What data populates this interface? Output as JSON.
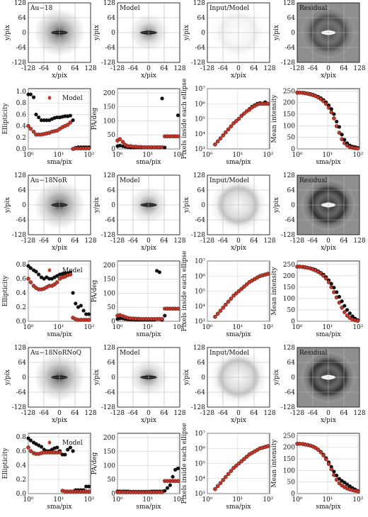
{
  "labels": {
    "y_pix": "y/pix",
    "x_pix": "x/pix",
    "sma": "sma/pix",
    "ellipticity": "Ellipticity",
    "pa": "PA/deg",
    "pixels": "Pixels inside each ellipse",
    "mean": "Mean intensity",
    "model_legend": "Model",
    "panel_model": "Model",
    "panel_ratio": "Input/Model",
    "panel_residual": "Residual"
  },
  "image_ticks": [
    "128",
    "64",
    "0",
    "-64",
    "-128"
  ],
  "image_xticks": [
    "-128",
    "-64",
    "0",
    "64",
    "128"
  ],
  "colors": {
    "data": "#111111",
    "model": "#c0392b",
    "grid": "#cccccc"
  },
  "chart_data": [
    {
      "type": "scatter",
      "galaxy": "Au−18",
      "ellipticity": {
        "x": [
          1.0,
          1.2,
          1.5,
          1.8,
          2.2,
          2.7,
          3.3,
          4.0,
          4.9,
          6.0,
          7.3,
          8.9,
          10.9,
          13.3,
          16.2,
          19.8,
          24.2,
          29.5,
          36,
          44,
          54,
          66,
          80,
          98
        ],
        "data": [
          0.95,
          0.95,
          0.9,
          0.6,
          0.55,
          0.5,
          0.5,
          0.5,
          0.5,
          0.52,
          0.54,
          0.55,
          0.55,
          0.56,
          0.57,
          0.57,
          0.58,
          0.5,
          0.02,
          0.03,
          0.03,
          0.03,
          0.03,
          0.03
        ],
        "model": [
          0.4,
          0.35,
          0.3,
          0.25,
          0.25,
          0.25,
          0.26,
          0.27,
          0.28,
          0.3,
          0.31,
          0.32,
          0.35,
          0.38,
          0.4,
          0.42,
          0.46,
          0.0,
          0.01,
          0.01,
          0.01,
          0.01,
          0.01,
          0.01
        ],
        "xticks": [
          "10⁰",
          "10¹",
          "10²"
        ],
        "yticks": [
          "0.0",
          "0.2",
          "0.4",
          "0.6",
          "0.8",
          "1.0"
        ],
        "ylim": [
          0,
          1.05
        ]
      },
      "pa": {
        "x": [
          1.0,
          1.2,
          1.5,
          1.8,
          2.2,
          2.7,
          3.3,
          4.0,
          4.9,
          6.0,
          7.3,
          8.9,
          10.9,
          13.3,
          16.2,
          19.8,
          24.2,
          29.5,
          36,
          44,
          54,
          66,
          80,
          98
        ],
        "data": [
          10,
          12,
          10,
          8,
          6,
          5,
          5,
          5,
          5,
          5,
          5,
          5,
          5,
          5,
          5,
          5,
          5,
          180,
          5,
          45,
          45,
          45,
          45,
          120
        ],
        "model": [
          30,
          35,
          25,
          15,
          10,
          10,
          8,
          8,
          7,
          7,
          6,
          6,
          6,
          6,
          6,
          6,
          6,
          6,
          45,
          45,
          45,
          45,
          45,
          45
        ],
        "yticks": [
          "0",
          "50",
          "100",
          "150",
          "200"
        ],
        "ylim": [
          0,
          215
        ]
      },
      "pixels": {
        "x": [
          1.8,
          2.2,
          2.7,
          3.3,
          4.0,
          4.9,
          6.0,
          7.3,
          8.9,
          10.9,
          13.3,
          16.2,
          19.8,
          24.2,
          29.5,
          36,
          44,
          54,
          66,
          80,
          98
        ],
        "data": [
          3.3,
          3.5,
          3.7,
          3.9,
          4.1,
          4.3,
          4.5,
          4.7,
          4.85,
          5.0,
          5.2,
          5.35,
          5.5,
          5.65,
          5.8,
          5.9,
          6.0,
          6.05,
          6.0,
          6.1,
          6.0
        ],
        "model": [
          3.3,
          3.5,
          3.7,
          3.9,
          4.1,
          4.3,
          4.5,
          4.7,
          4.85,
          5.0,
          5.2,
          5.35,
          5.5,
          5.6,
          5.75,
          5.85,
          5.95,
          6.0,
          6.0,
          6.0,
          6.0
        ],
        "yticks": [
          "10³",
          "10⁴",
          "10⁵",
          "10⁶",
          "10⁷"
        ],
        "ylim": [
          3,
          7
        ]
      },
      "mean": {
        "x": [
          1.0,
          1.2,
          1.5,
          1.8,
          2.2,
          2.7,
          3.3,
          4.0,
          4.9,
          6.0,
          7.3,
          8.9,
          10.9,
          13.3,
          16.2,
          19.8,
          24.2,
          29.5,
          36,
          44,
          54,
          66,
          80,
          98
        ],
        "data": [
          243,
          243,
          242,
          241,
          239,
          237,
          234,
          230,
          225,
          219,
          211,
          201,
          188,
          172,
          150,
          118,
          95,
          62,
          40,
          25,
          15,
          10,
          8,
          5
        ],
        "model": [
          243,
          243,
          242,
          240,
          238,
          235,
          232,
          228,
          222,
          215,
          206,
          194,
          178,
          158,
          132,
          98,
          70,
          42,
          25,
          15,
          8,
          5,
          3,
          2
        ],
        "yticks": [
          "0",
          "50",
          "100",
          "150",
          "200",
          "250"
        ],
        "ylim": [
          0,
          260
        ]
      }
    },
    {
      "type": "scatter",
      "galaxy": "Au−18NoR",
      "ellipticity": {
        "x": [
          1.0,
          1.2,
          1.5,
          1.8,
          2.2,
          2.7,
          3.3,
          4.0,
          4.9,
          6.0,
          7.3,
          8.9,
          10.9,
          13.3,
          16.2,
          19.8,
          24.2,
          29.5,
          36,
          44,
          54,
          66,
          80,
          98
        ],
        "data": [
          0.78,
          0.75,
          0.72,
          0.7,
          0.66,
          0.62,
          0.6,
          0.62,
          0.6,
          0.6,
          0.62,
          0.64,
          0.66,
          0.67,
          0.68,
          0.68,
          0.69,
          0.4,
          0.25,
          0.2,
          0.22,
          0.15,
          0.1,
          0.1
        ],
        "model": [
          0.6,
          0.55,
          0.5,
          0.47,
          0.45,
          0.45,
          0.46,
          0.48,
          0.5,
          0.5,
          0.52,
          0.55,
          0.6,
          0.62,
          0.63,
          0.65,
          0.66,
          0.05,
          0.03,
          0.02,
          0.02,
          0.02,
          0.02,
          0.02
        ],
        "xticks": [
          "10⁰",
          "10¹",
          "10²"
        ],
        "yticks": [
          "0.0",
          "0.2",
          "0.4",
          "0.6",
          "0.8"
        ],
        "ylim": [
          0,
          0.85
        ]
      },
      "pa": {
        "x": [
          1.0,
          1.2,
          1.5,
          1.8,
          2.2,
          2.7,
          3.3,
          4.0,
          4.9,
          6.0,
          7.3,
          8.9,
          10.9,
          13.3,
          16.2,
          19.8,
          24.2,
          29.5,
          36,
          44,
          54,
          66,
          80,
          98
        ],
        "data": [
          8,
          10,
          10,
          8,
          7,
          6,
          6,
          5,
          5,
          5,
          5,
          5,
          5,
          5,
          5,
          180,
          175,
          5,
          20,
          45,
          45,
          45,
          45,
          45
        ],
        "model": [
          20,
          22,
          18,
          15,
          12,
          10,
          10,
          9,
          9,
          8,
          8,
          8,
          8,
          8,
          8,
          8,
          8,
          8,
          45,
          45,
          45,
          45,
          45,
          45
        ],
        "yticks": [
          "0",
          "50",
          "100",
          "150",
          "200"
        ],
        "ylim": [
          0,
          215
        ]
      },
      "pixels": {
        "x": [
          1.8,
          2.2,
          2.7,
          3.3,
          4.0,
          4.9,
          6.0,
          7.3,
          8.9,
          10.9,
          13.3,
          16.2,
          19.8,
          24.2,
          29.5,
          36,
          44,
          54,
          66,
          80,
          98
        ],
        "data": [
          3.3,
          3.5,
          3.7,
          3.9,
          4.1,
          4.3,
          4.5,
          4.7,
          4.85,
          5.0,
          5.15,
          5.3,
          5.45,
          5.6,
          5.7,
          5.8,
          5.9,
          6.0,
          6.05,
          6.1,
          6.15
        ],
        "model": [
          3.3,
          3.5,
          3.7,
          3.9,
          4.1,
          4.3,
          4.5,
          4.7,
          4.85,
          5.0,
          5.15,
          5.3,
          5.45,
          5.6,
          5.7,
          5.8,
          5.9,
          6.0,
          6.05,
          6.1,
          6.15
        ],
        "yticks": [
          "10³",
          "10⁴",
          "10⁵",
          "10⁶",
          "10⁷"
        ],
        "ylim": [
          3,
          7
        ]
      },
      "mean": {
        "x": [
          1.0,
          1.2,
          1.5,
          1.8,
          2.2,
          2.7,
          3.3,
          4.0,
          4.9,
          6.0,
          7.3,
          8.9,
          10.9,
          13.3,
          16.2,
          19.8,
          24.2,
          29.5,
          36,
          44,
          54,
          66,
          80,
          98
        ],
        "data": [
          240,
          240,
          239,
          238,
          236,
          233,
          230,
          226,
          220,
          213,
          205,
          194,
          180,
          165,
          148,
          128,
          108,
          88,
          68,
          50,
          35,
          22,
          12,
          5
        ],
        "model": [
          240,
          240,
          239,
          237,
          235,
          232,
          228,
          223,
          217,
          210,
          200,
          188,
          172,
          150,
          128,
          105,
          82,
          60,
          40,
          25,
          15,
          8,
          4,
          2
        ],
        "yticks": [
          "0",
          "50",
          "100",
          "150",
          "200",
          "250"
        ],
        "ylim": [
          0,
          265
        ]
      }
    },
    {
      "type": "scatter",
      "galaxy": "Au−18NoRNoQ",
      "ellipticity": {
        "x": [
          1.0,
          1.2,
          1.5,
          1.8,
          2.2,
          2.7,
          3.3,
          4.0,
          4.9,
          6.0,
          7.3,
          8.9,
          10.9,
          13.3,
          16.2,
          19.8,
          24.2,
          29.5,
          36,
          44,
          54,
          66,
          80,
          98
        ],
        "data": [
          0.78,
          0.75,
          0.72,
          0.7,
          0.68,
          0.66,
          0.62,
          0.6,
          0.6,
          0.62,
          0.64,
          0.65,
          0.6,
          0.55,
          0.55,
          0.62,
          0.65,
          0.6,
          0.05,
          0.05,
          0.05,
          0.05,
          0.1,
          0.1
        ],
        "model": [
          0.65,
          0.6,
          0.57,
          0.56,
          0.56,
          0.57,
          0.58,
          0.58,
          0.58,
          0.58,
          0.58,
          0.58,
          0.58,
          0.04,
          0.03,
          0.03,
          0.03,
          0.03,
          0.03,
          0.03,
          0.03,
          0.03,
          0.03,
          0.03
        ],
        "xticks": [
          "10⁰",
          "10¹",
          "10²"
        ],
        "yticks": [
          "0.0",
          "0.2",
          "0.4",
          "0.6",
          "0.8"
        ],
        "ylim": [
          0,
          0.85
        ]
      },
      "pa": {
        "x": [
          1.0,
          1.2,
          1.5,
          1.8,
          2.2,
          2.7,
          3.3,
          4.0,
          4.9,
          6.0,
          7.3,
          8.9,
          10.9,
          13.3,
          16.2,
          19.8,
          24.2,
          29.5,
          36,
          44,
          54,
          66,
          80,
          98
        ],
        "data": [
          8,
          8,
          8,
          8,
          8,
          7,
          7,
          7,
          7,
          7,
          7,
          7,
          7,
          8,
          8,
          8,
          8,
          8,
          10,
          20,
          30,
          60,
          85,
          90
        ],
        "model": [
          5,
          5,
          5,
          5,
          5,
          5,
          5,
          5,
          5,
          5,
          5,
          5,
          5,
          5,
          5,
          5,
          5,
          5,
          45,
          45,
          45,
          45,
          45,
          45
        ],
        "yticks": [
          "0",
          "50",
          "100",
          "150",
          "200"
        ],
        "ylim": [
          0,
          215
        ]
      },
      "pixels": {
        "x": [
          1.8,
          2.2,
          2.7,
          3.3,
          4.0,
          4.9,
          6.0,
          7.3,
          8.9,
          10.9,
          13.3,
          16.2,
          19.8,
          24.2,
          29.5,
          36,
          44,
          54,
          66,
          80,
          98
        ],
        "data": [
          3.3,
          3.5,
          3.7,
          3.9,
          4.1,
          4.3,
          4.5,
          4.7,
          4.85,
          5.0,
          5.15,
          5.3,
          5.45,
          5.6,
          5.7,
          5.8,
          5.9,
          6.0,
          6.05,
          6.1,
          6.15
        ],
        "model": [
          3.3,
          3.5,
          3.7,
          3.9,
          4.1,
          4.3,
          4.5,
          4.7,
          4.85,
          5.0,
          5.15,
          5.3,
          5.45,
          5.6,
          5.7,
          5.8,
          5.9,
          6.0,
          6.05,
          6.1,
          6.15
        ],
        "yticks": [
          "10³",
          "10⁴",
          "10⁵",
          "10⁶",
          "10⁷"
        ],
        "ylim": [
          3,
          7
        ]
      },
      "mean": {
        "x": [
          1.0,
          1.2,
          1.5,
          1.8,
          2.2,
          2.7,
          3.3,
          4.0,
          4.9,
          6.0,
          7.3,
          8.9,
          10.9,
          13.3,
          16.2,
          19.8,
          24.2,
          29.5,
          36,
          44,
          54,
          66,
          80,
          98
        ],
        "data": [
          215,
          215,
          214,
          212,
          210,
          207,
          203,
          198,
          190,
          180,
          168,
          153,
          135,
          115,
          95,
          78,
          64,
          55,
          48,
          40,
          32,
          24,
          18,
          12
        ],
        "model": [
          215,
          215,
          214,
          212,
          210,
          207,
          203,
          197,
          189,
          178,
          165,
          148,
          128,
          105,
          80,
          60,
          45,
          35,
          28,
          22,
          18,
          15,
          12,
          10
        ],
        "yticks": [
          "0",
          "50",
          "100",
          "150",
          "200",
          "250"
        ],
        "ylim": [
          0,
          260
        ]
      }
    }
  ]
}
